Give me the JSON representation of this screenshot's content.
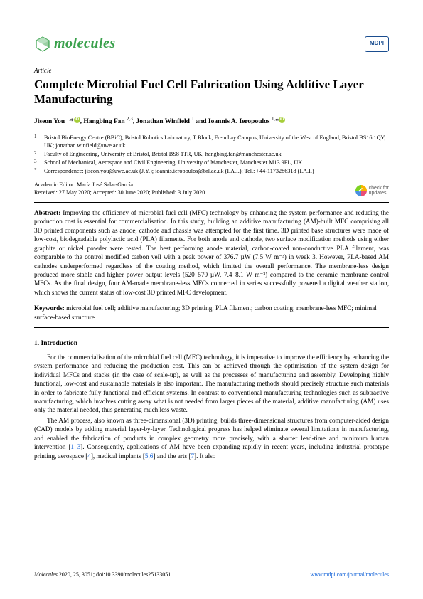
{
  "journal": {
    "name": "molecules",
    "logo_accent_color": "#3aa14c",
    "publisher_logo": "MDPI"
  },
  "article_type": "Article",
  "title": "Complete Microbial Fuel Cell Fabrication Using Additive Layer Manufacturing",
  "authors_html": "Jiseon You <sup>1,</sup>*<span class='orcid'>iD</span>, Hangbing Fan <sup>2,3</sup>, Jonathan Winfield <sup>1</sup> and Ioannis A. Ieropoulos <sup>1,</sup>*<span class='orcid'>iD</span>",
  "affiliations": [
    {
      "num": "1",
      "text": "Bristol BioEnergy Centre (BBiC), Bristol Robotics Laboratory, T Block, Frenchay Campus, University of the West of England, Bristol BS16 1QY, UK; jonathan.winfield@uwe.ac.uk"
    },
    {
      "num": "2",
      "text": "Faculty of Engineering, University of Bristol, Bristol BS8 1TR, UK; hangbing.fan@manchester.ac.uk"
    },
    {
      "num": "3",
      "text": "School of Mechanical, Aerospace and Civil Engineering, University of Manchester, Manchester M13 9PL, UK"
    },
    {
      "num": "*",
      "text": "Correspondence: jiseon.you@uwe.ac.uk (J.Y.); ioannis.ieropoulos@brl.ac.uk (I.A.I.); Tel.: +44-1173286318 (I.A.I.)"
    }
  ],
  "editor": "Academic Editor: María José Salar-García",
  "dates": "Received: 27 May 2020; Accepted: 30 June 2020; Published: 3 July 2020",
  "check_updates_label": "check for\nupdates",
  "abstract": "Improving the efficiency of microbial fuel cell (MFC) technology by enhancing the system performance and reducing the production cost is essential for commercialisation. In this study, building an additive manufacturing (AM)-built MFC comprising all 3D printed components such as anode, cathode and chassis was attempted for the first time. 3D printed base structures were made of low-cost, biodegradable polylactic acid (PLA) filaments. For both anode and cathode, two surface modification methods using either graphite or nickel powder were tested. The best performing anode material, carbon-coated non-conductive PLA filament, was comparable to the control modified carbon veil with a peak power of 376.7 µW (7.5 W m⁻³) in week 3. However, PLA-based AM cathodes underperformed regardless of the coating method, which limited the overall performance. The membrane-less design produced more stable and higher power output levels (520–570 µW, 7.4–8.1 W m⁻³) compared to the ceramic membrane control MFCs. As the final design, four AM-made membrane-less MFCs connected in series successfully powered a digital weather station, which shows the current status of low-cost 3D printed MFC development.",
  "keywords": "microbial fuel cell; additive manufacturing; 3D printing; PLA filament; carbon coating; membrane-less MFC; minimal surface-based structure",
  "section_1_heading": "1. Introduction",
  "para_1": "For the commercialisation of the microbial fuel cell (MFC) technology, it is imperative to improve the efficiency by enhancing the system performance and reducing the production cost. This can be achieved through the optimisation of the system design for individual MFCs and stacks (in the case of scale-up), as well as the processes of manufacturing and assembly. Developing highly functional, low-cost and sustainable materials is also important. The manufacturing methods should precisely structure such materials in order to fabricate fully functional and efficient systems. In contrast to conventional manufacturing technologies such as subtractive manufacturing, which involves cutting away what is not needed from larger pieces of the material, additive manufacturing (AM) uses only the material needed, thus generating much less waste.",
  "para_2_pre": "The AM process, also known as three-dimensional (3D) printing, builds three-dimensional structures from computer-aided design (CAD) models by adding material layer-by-layer. Technological progress has helped eliminate several limitations in manufacturing, and enabled the fabrication of products in complex geometry more precisely, with a shorter lead-time and minimum human intervention [",
  "ref_1_3": "1–3",
  "para_2_mid1": "]. Consequently, applications of AM have been expanding rapidly in recent years, including industrial prototype printing, aerospace [",
  "ref_4": "4",
  "para_2_mid2": "], medical implants [",
  "ref_5_6": "5,6",
  "para_2_mid3": "] and the arts [",
  "ref_7": "7",
  "para_2_end": "]. It also",
  "footer": {
    "left_italic": "Molecules",
    "left_rest": " 2020, 25, 3051; doi:10.3390/molecules25133051",
    "right": "www.mdpi.com/journal/molecules"
  }
}
